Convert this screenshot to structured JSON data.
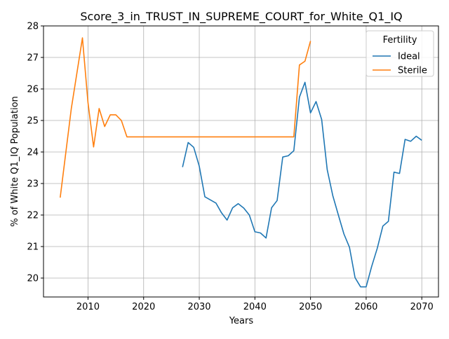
{
  "chart_data": {
    "type": "line",
    "title": "Score_3_in_TRUST_IN_SUPREME_COURT_for_White_Q1_IQ",
    "xlabel": "Years",
    "ylabel": "% of White Q1_IQ Population",
    "xlim": [
      2002,
      2073
    ],
    "ylim": [
      19.4,
      28.0
    ],
    "xticks": [
      2010,
      2020,
      2030,
      2040,
      2050,
      2060,
      2070
    ],
    "yticks": [
      20,
      21,
      22,
      23,
      24,
      25,
      26,
      27,
      28
    ],
    "grid": true,
    "legend": {
      "title": "Fertility",
      "placement": "top-right"
    },
    "series": [
      {
        "name": "Ideal",
        "color": "#1f77b4",
        "x": [
          2027,
          2028,
          2029,
          2030,
          2031,
          2032,
          2033,
          2034,
          2035,
          2036,
          2037,
          2038,
          2039,
          2040,
          2041,
          2042,
          2043,
          2044,
          2045,
          2046,
          2047,
          2048,
          2049,
          2050,
          2051,
          2052,
          2053,
          2054,
          2055,
          2056,
          2057,
          2058,
          2059,
          2060,
          2061,
          2062,
          2063,
          2064,
          2065,
          2066,
          2067,
          2068,
          2069,
          2070
        ],
        "y": [
          23.52,
          24.3,
          24.15,
          23.55,
          22.58,
          22.48,
          22.38,
          22.07,
          21.84,
          22.23,
          22.36,
          22.22,
          22.0,
          21.47,
          21.43,
          21.27,
          22.23,
          22.46,
          23.84,
          23.88,
          24.04,
          25.74,
          26.21,
          25.24,
          25.6,
          25.03,
          23.44,
          22.62,
          22.0,
          21.4,
          20.98,
          20.01,
          19.72,
          19.72,
          20.37,
          20.95,
          21.65,
          21.8,
          23.36,
          23.32,
          24.4,
          24.34,
          24.5,
          24.37
        ]
      },
      {
        "name": "Sterile",
        "color": "#ff7f0e",
        "x": [
          2005,
          2007,
          2009,
          2010,
          2011,
          2012,
          2013,
          2014,
          2015,
          2016,
          2017,
          2020,
          2025,
          2030,
          2035,
          2040,
          2045,
          2047,
          2048,
          2049,
          2050
        ],
        "y": [
          22.55,
          25.37,
          27.62,
          25.57,
          24.16,
          25.38,
          24.81,
          25.18,
          25.18,
          25.0,
          24.48,
          24.48,
          24.48,
          24.48,
          24.48,
          24.48,
          24.48,
          24.48,
          26.76,
          26.88,
          27.52
        ]
      }
    ]
  }
}
